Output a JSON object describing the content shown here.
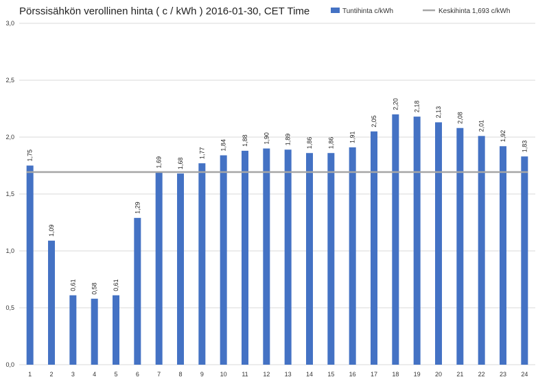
{
  "chart_data": {
    "type": "bar",
    "title": "Pörssisähkön verollinen hinta ( c / kWh ) 2016-01-30, CET Time",
    "categories": [
      "1",
      "2",
      "3",
      "4",
      "5",
      "6",
      "7",
      "8",
      "9",
      "10",
      "11",
      "12",
      "13",
      "14",
      "15",
      "16",
      "17",
      "18",
      "19",
      "20",
      "21",
      "22",
      "23",
      "24"
    ],
    "series": [
      {
        "name": "Tuntihinta c/kWh",
        "color": "#4472C4",
        "values": [
          1.75,
          1.09,
          0.61,
          0.58,
          0.61,
          1.29,
          1.69,
          1.68,
          1.77,
          1.84,
          1.88,
          1.9,
          1.89,
          1.86,
          1.86,
          1.91,
          2.05,
          2.2,
          2.18,
          2.13,
          2.08,
          2.01,
          1.92,
          1.83
        ],
        "labels": [
          "1,75",
          "1,09",
          "0,61",
          "0,58",
          "0,61",
          "1,29",
          "1,69",
          "1,68",
          "1,77",
          "1,84",
          "1,88",
          "1,90",
          "1,89",
          "1,86",
          "1,86",
          "1,91",
          "2,05",
          "2,20",
          "2,18",
          "2,13",
          "2,08",
          "2,01",
          "1,92",
          "1,83"
        ]
      }
    ],
    "average_line": {
      "name": "Keskihinta 1,693 c/kWh",
      "value": 1.693,
      "color": "#a6a6a6"
    },
    "y_ticks": [
      {
        "value": 0,
        "label": "0,0"
      },
      {
        "value": 0.5,
        "label": "0,5"
      },
      {
        "value": 1.0,
        "label": "1,0"
      },
      {
        "value": 1.5,
        "label": "1,5"
      },
      {
        "value": 2.0,
        "label": "2,0"
      },
      {
        "value": 2.5,
        "label": "2,5"
      },
      {
        "value": 3.0,
        "label": "3,0"
      }
    ],
    "ylim": [
      0,
      3.0
    ],
    "grid": true,
    "legend_position": "top-right"
  }
}
